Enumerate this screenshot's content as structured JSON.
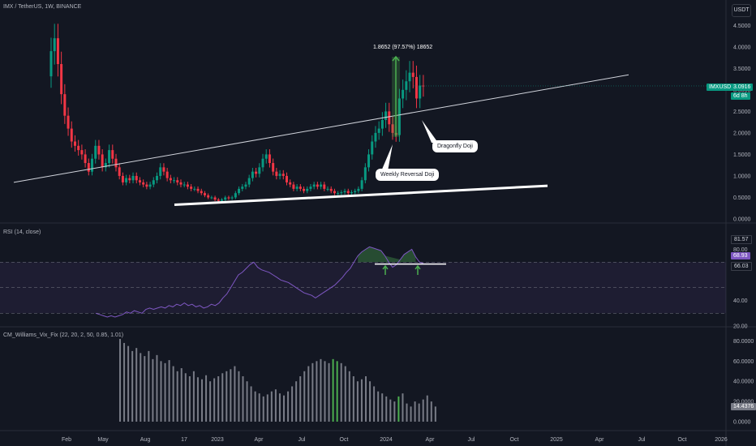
{
  "header": {
    "main_title": "IMX / TetherUS, 1W, BINANCE",
    "rsi_title": "RSI (14, close)",
    "vix_title": "CM_Williams_Vix_Fix (22, 20, 2, 50, 0.85, 1.01)",
    "currency_button": "USDT"
  },
  "price_tag": {
    "symbol": "IMXUSDT",
    "value": "3.0916",
    "countdown": "6d 8h",
    "color": "#089981"
  },
  "rsi_tags": {
    "upper": "81.57",
    "current": "68.93",
    "prev": "66.03"
  },
  "vix_tag": "14.4376",
  "measure_label": "1.8652 (97.57%) 18652",
  "annotations": {
    "dragonfly": "Dragonfly Doji",
    "weekly_reversal": "Weekly Reversal Doji"
  },
  "colors": {
    "up": "#089981",
    "down": "#f23645",
    "line_up": "#26a69a",
    "rsi_line": "#7e57c2",
    "vix_bar": "#787b86",
    "vix_highlight": "#4caf50",
    "measure_arrow": "#4caf50"
  },
  "chart_data": [
    {
      "type": "candlestick",
      "title": "IMX / TetherUS, 1W, BINANCE",
      "ylim": [
        0,
        4.75
      ],
      "y_ticks": [
        "4.5000",
        "4.0000",
        "3.5000",
        "3.0000",
        "2.5000",
        "2.0000",
        "1.5000",
        "1.0000",
        "0.5000",
        "0.0000"
      ],
      "y_tick_values": [
        4.5,
        4.0,
        3.5,
        3.0,
        2.5,
        2.0,
        1.5,
        1.0,
        0.5,
        0.0
      ],
      "x_ticks": [
        "Feb",
        "May",
        "Aug",
        "17",
        "2023",
        "Apr",
        "Jul",
        "Oct",
        "2024",
        "Apr",
        "Jul",
        "Oct",
        "2025",
        "Apr",
        "Jul",
        "Oct",
        "2026"
      ],
      "close_trajectory": [
        3.9,
        4.2,
        3.6,
        2.9,
        2.4,
        2.1,
        1.8,
        1.7,
        1.6,
        1.5,
        1.3,
        1.1,
        1.4,
        1.7,
        1.5,
        1.2,
        1.3,
        1.6,
        1.4,
        1.2,
        1.0,
        0.85,
        0.95,
        0.9,
        1.0,
        0.9,
        0.85,
        0.8,
        0.75,
        0.8,
        0.9,
        1.0,
        1.2,
        1.1,
        0.95,
        0.9,
        0.9,
        0.85,
        0.8,
        0.8,
        0.75,
        0.7,
        0.7,
        0.65,
        0.6,
        0.55,
        0.5,
        0.5,
        0.45,
        0.42,
        0.45,
        0.5,
        0.48,
        0.5,
        0.6,
        0.7,
        0.75,
        0.8,
        0.95,
        1.1,
        1.05,
        1.2,
        1.4,
        1.5,
        1.3,
        1.1,
        1.0,
        1.05,
        1.0,
        0.85,
        0.8,
        0.7,
        0.75,
        0.7,
        0.65,
        0.7,
        0.75,
        0.8,
        0.75,
        0.8,
        0.7,
        0.7,
        0.65,
        0.6,
        0.6,
        0.62,
        0.65,
        0.6,
        0.62,
        0.65,
        0.7,
        0.9,
        1.2,
        1.5,
        1.8,
        2.0,
        2.1,
        2.3,
        2.5,
        2.2,
        2.0,
        1.95,
        2.8,
        3.0,
        3.2,
        3.4,
        3.3,
        2.8,
        3.1,
        3.09
      ],
      "ascending_trendline": [
        [
          0.0,
          0.85
        ],
        [
          1.0,
          3.35
        ]
      ],
      "support_line": [
        [
          0.0,
          0.33
        ],
        [
          1.0,
          0.77
        ]
      ],
      "measure": {
        "from": 1.91,
        "to": 3.77,
        "label": "1.8652 (97.57%) 18652"
      },
      "annotations": [
        "Dragonfly Doji",
        "Weekly Reversal Doji"
      ],
      "last_price": 3.0916,
      "last_price_countdown": "6d 8h"
    },
    {
      "type": "line",
      "title": "RSI (14, close)",
      "ylim": [
        20,
        100
      ],
      "y_ticks": [
        "80.00",
        "40.00",
        "20.00"
      ],
      "y_tick_values": [
        80,
        40,
        20
      ],
      "bands": [
        70,
        50,
        30
      ],
      "series": [
        {
          "values": [
            30,
            29,
            28,
            27,
            28,
            27,
            28,
            29,
            31,
            30,
            32,
            31,
            30,
            33,
            34,
            33,
            34,
            35,
            34,
            36,
            35,
            37,
            36,
            38,
            36,
            37,
            35,
            36,
            34,
            35,
            37,
            36,
            38,
            42,
            45,
            50,
            55,
            60,
            62,
            65,
            68,
            70,
            66,
            64,
            63,
            62,
            60,
            58,
            56,
            55,
            54,
            52,
            50,
            48,
            46,
            45,
            44,
            42,
            44,
            46,
            48,
            50,
            52,
            55,
            58,
            62,
            65,
            70,
            75,
            78,
            80,
            82,
            81,
            80,
            79,
            75,
            70,
            66,
            68,
            72,
            76,
            78,
            80,
            74,
            70,
            68.93
          ]
        }
      ],
      "tags": [
        "81.57",
        "68.93",
        "66.03"
      ]
    },
    {
      "type": "bar",
      "title": "CM_Williams_Vix_Fix (22, 20, 2, 50, 0.85, 1.01)",
      "ylim": [
        0,
        90
      ],
      "y_ticks": [
        "80.0000",
        "60.0000",
        "40.0000",
        "20.0000",
        "0.0000"
      ],
      "y_tick_values": [
        80,
        60,
        40,
        20,
        0
      ],
      "values": [
        82,
        78,
        75,
        70,
        73,
        68,
        65,
        70,
        62,
        66,
        60,
        58,
        61,
        55,
        50,
        53,
        48,
        45,
        50,
        44,
        42,
        46,
        40,
        43,
        45,
        48,
        50,
        52,
        55,
        50,
        45,
        40,
        35,
        30,
        28,
        25,
        27,
        30,
        32,
        28,
        26,
        30,
        35,
        40,
        45,
        50,
        55,
        58,
        60,
        62,
        60,
        58,
        62,
        60,
        58,
        55,
        50,
        45,
        40,
        42,
        45,
        40,
        35,
        30,
        28,
        25,
        22,
        20,
        25,
        28,
        18,
        15,
        20,
        18,
        22,
        26,
        20,
        15
      ],
      "highlight_indices": [
        52,
        53,
        68
      ]
    }
  ]
}
